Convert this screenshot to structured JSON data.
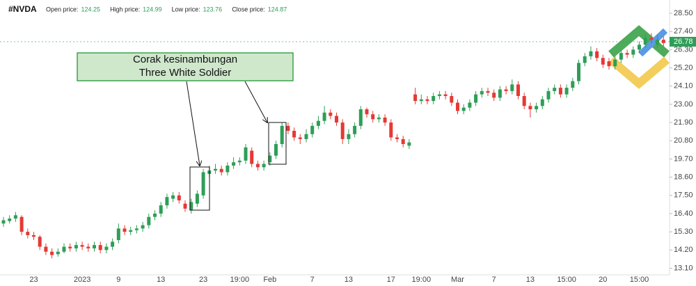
{
  "header": {
    "symbol": "#NVDA",
    "info": [
      {
        "label": "Open price:",
        "value": 124.25
      },
      {
        "label": "High price:",
        "value": 124.99
      },
      {
        "label": "Low price:",
        "value": 123.76
      },
      {
        "label": "Close price:",
        "value": 124.87
      }
    ]
  },
  "chart_data": {
    "type": "candlestick",
    "up_color": "#2e9e57",
    "down_color": "#e53935",
    "ylim": [
      12.7,
      29.3
    ],
    "yticks": [
      {
        "value": 28.5,
        "label": "28.50"
      },
      {
        "value": 27.4,
        "label": "27.40"
      },
      {
        "value": 26.3,
        "label": "26.30"
      },
      {
        "value": 25.2,
        "label": "25.20"
      },
      {
        "value": 24.1,
        "label": "24.10"
      },
      {
        "value": 23,
        "label": "23.00"
      },
      {
        "value": 21.9,
        "label": "21.90"
      },
      {
        "value": 20.8,
        "label": "20.80"
      },
      {
        "value": 19.7,
        "label": "19.70"
      },
      {
        "value": 18.6,
        "label": "18.60"
      },
      {
        "value": 17.5,
        "label": "17.50"
      },
      {
        "value": 16.4,
        "label": "16.40"
      },
      {
        "value": 15.3,
        "label": "15.30"
      },
      {
        "value": 14.2,
        "label": "14.20"
      },
      {
        "value": 13.1,
        "label": "13.10"
      }
    ],
    "grid": false,
    "last_price": 26.78,
    "categories": [
      null,
      null,
      null,
      null,
      null,
      "23",
      null,
      null,
      null,
      null,
      null,
      null,
      null,
      "2023",
      null,
      null,
      null,
      null,
      null,
      "9",
      null,
      null,
      null,
      null,
      null,
      null,
      "13",
      null,
      null,
      null,
      null,
      null,
      null,
      "23",
      null,
      null,
      null,
      null,
      null,
      "19:00",
      null,
      null,
      null,
      null,
      "Feb",
      null,
      null,
      null,
      null,
      null,
      null,
      "7",
      null,
      null,
      null,
      null,
      null,
      "13",
      null,
      null,
      null,
      null,
      null,
      null,
      "17",
      null,
      null,
      null,
      null,
      "19:00",
      null,
      null,
      null,
      null,
      null,
      "Mar",
      null,
      null,
      null,
      null,
      null,
      "7",
      null,
      null,
      null,
      null,
      null,
      "13",
      null,
      null,
      null,
      null,
      null,
      "15:00",
      null,
      null,
      null,
      null,
      null,
      "20",
      null,
      null,
      null,
      null,
      null,
      "15:00",
      null,
      null,
      null,
      null
    ],
    "open": [
      15.8,
      15.95,
      16.1,
      16.2,
      15.3,
      15.1,
      15.0,
      14.4,
      14.1,
      13.95,
      14.1,
      14.4,
      14.3,
      14.5,
      14.4,
      14.3,
      14.5,
      14.2,
      14.4,
      14.8,
      15.5,
      15.3,
      15.4,
      15.5,
      15.7,
      16.2,
      16.4,
      16.9,
      17.3,
      17.5,
      17.0,
      16.6,
      17.0,
      17.5,
      18.8,
      19.0,
      19.1,
      18.9,
      19.3,
      19.5,
      19.6,
      20.2,
      19.4,
      19.2,
      19.5,
      19.9,
      20.6,
      21.7,
      21.4,
      21.0,
      20.9,
      21.2,
      21.7,
      22.0,
      22.5,
      22.3,
      21.9,
      20.9,
      21.2,
      21.7,
      22.7,
      22.4,
      22.1,
      22.2,
      21.9,
      21.0,
      20.9,
      20.5,
      23.6,
      23.2,
      23.3,
      23.2,
      23.5,
      23.6,
      23.5,
      23.1,
      22.6,
      22.8,
      23.1,
      23.6,
      23.8,
      23.7,
      23.4,
      23.9,
      23.8,
      24.2,
      23.5,
      22.9,
      22.7,
      22.9,
      23.3,
      23.8,
      24.0,
      23.6,
      24.0,
      24.4,
      25.5,
      25.9,
      26.2,
      25.8,
      25.6,
      25.3,
      25.7,
      26.1,
      26.0,
      26.3,
      26.6,
      27.0,
      26.6,
      26.9
    ],
    "high": [
      16.2,
      16.3,
      16.5,
      16.3,
      15.5,
      15.3,
      15.1,
      14.6,
      14.3,
      14.3,
      14.6,
      14.6,
      14.7,
      14.7,
      14.6,
      14.7,
      14.7,
      14.6,
      14.9,
      15.8,
      15.7,
      15.6,
      15.7,
      15.9,
      16.4,
      16.6,
      17.1,
      17.6,
      17.7,
      17.7,
      17.2,
      17.3,
      17.8,
      19.1,
      19.3,
      19.4,
      19.3,
      19.5,
      19.8,
      19.8,
      20.6,
      20.4,
      19.6,
      19.6,
      20.1,
      20.8,
      21.9,
      21.9,
      21.6,
      21.2,
      21.5,
      21.9,
      22.3,
      22.9,
      22.7,
      22.5,
      22.1,
      21.5,
      21.9,
      22.9,
      22.8,
      22.6,
      22.4,
      22.4,
      22.1,
      21.2,
      21.1,
      20.9,
      24.0,
      23.6,
      23.5,
      23.7,
      23.8,
      23.8,
      23.7,
      23.3,
      23.0,
      23.3,
      23.8,
      24.0,
      24.0,
      23.9,
      24.1,
      24.1,
      24.5,
      24.4,
      23.7,
      23.1,
      23.1,
      23.5,
      24.0,
      24.2,
      24.2,
      24.2,
      24.6,
      25.7,
      26.1,
      26.5,
      26.4,
      26.0,
      25.8,
      25.9,
      26.3,
      26.3,
      26.5,
      26.8,
      27.2,
      27.3,
      27.2,
      27.1
    ],
    "low": [
      15.6,
      15.8,
      15.9,
      15.1,
      14.9,
      14.8,
      14.2,
      13.9,
      13.7,
      13.8,
      14.0,
      14.1,
      14.1,
      14.2,
      14.1,
      14.1,
      14.0,
      14.0,
      14.2,
      14.6,
      15.1,
      15.1,
      15.2,
      15.3,
      15.5,
      16.0,
      16.2,
      16.7,
      17.1,
      17.0,
      16.5,
      16.4,
      16.8,
      17.3,
      18.6,
      18.8,
      18.7,
      18.7,
      19.1,
      19.3,
      19.4,
      19.2,
      19.0,
      19.0,
      19.3,
      19.7,
      20.4,
      21.2,
      20.8,
      20.6,
      20.7,
      21.0,
      21.5,
      21.8,
      22.1,
      21.7,
      20.6,
      20.6,
      21.0,
      21.5,
      22.2,
      21.9,
      21.9,
      21.7,
      20.8,
      20.7,
      20.4,
      20.3,
      23.0,
      23.0,
      23.0,
      23.0,
      23.3,
      23.3,
      22.9,
      22.4,
      22.4,
      22.6,
      22.9,
      23.4,
      23.5,
      23.2,
      23.2,
      23.6,
      23.6,
      23.3,
      22.7,
      22.2,
      22.5,
      22.7,
      23.1,
      23.6,
      23.4,
      23.4,
      23.8,
      24.2,
      25.3,
      25.7,
      25.6,
      25.2,
      25.1,
      25.1,
      25.5,
      25.8,
      25.8,
      26.1,
      26.4,
      26.7,
      26.4,
      26.5
    ],
    "close": [
      16.0,
      16.1,
      16.3,
      15.3,
      15.1,
      15.0,
      14.4,
      14.1,
      13.9,
      14.1,
      14.4,
      14.3,
      14.5,
      14.4,
      14.3,
      14.5,
      14.2,
      14.4,
      14.7,
      15.5,
      15.3,
      15.4,
      15.5,
      15.7,
      16.2,
      16.4,
      16.9,
      17.4,
      17.5,
      17.2,
      16.7,
      17.1,
      17.6,
      18.9,
      19.0,
      19.1,
      18.9,
      19.3,
      19.5,
      19.6,
      20.4,
      19.4,
      19.2,
      19.4,
      19.9,
      20.6,
      21.7,
      21.4,
      21.0,
      20.9,
      21.2,
      21.7,
      22.0,
      22.5,
      22.3,
      21.9,
      20.9,
      21.2,
      21.7,
      22.7,
      22.4,
      22.1,
      22.2,
      21.9,
      21.0,
      20.9,
      20.6,
      20.7,
      23.2,
      23.3,
      23.2,
      23.5,
      23.6,
      23.5,
      23.1,
      22.6,
      22.8,
      23.1,
      23.6,
      23.8,
      23.7,
      23.4,
      23.9,
      23.8,
      24.2,
      23.5,
      22.9,
      22.7,
      22.9,
      23.3,
      23.8,
      24.0,
      23.6,
      24.0,
      24.4,
      25.5,
      25.9,
      26.2,
      25.8,
      25.4,
      25.3,
      25.7,
      26.1,
      26.0,
      26.3,
      26.6,
      27.0,
      26.9,
      26.9,
      26.7
    ],
    "annotation": {
      "lines": [
        "Corak kesinambungan",
        "Three White Soldier"
      ]
    }
  }
}
